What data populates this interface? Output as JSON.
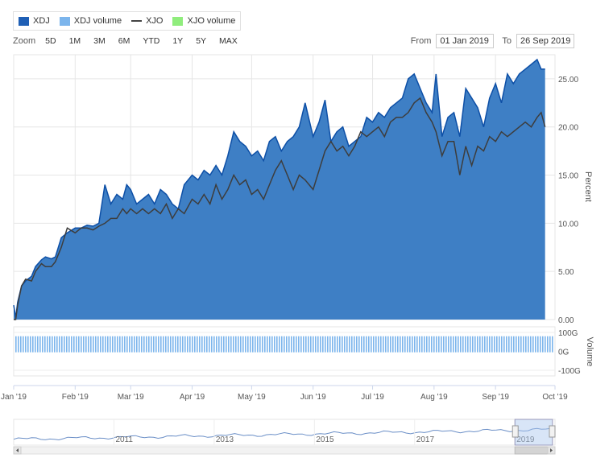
{
  "legend": [
    {
      "label": "XDJ",
      "color": "#1f5fb5",
      "kind": "area"
    },
    {
      "label": "XDJ volume",
      "color": "#7cb5ec",
      "kind": "bar"
    },
    {
      "label": "XJO",
      "color": "#444444",
      "kind": "line"
    },
    {
      "label": "XJO volume",
      "color": "#90ed7d",
      "kind": "bar"
    }
  ],
  "toolbar": {
    "zoom_label": "Zoom",
    "zoom_buttons": [
      "5D",
      "1M",
      "3M",
      "6M",
      "YTD",
      "1Y",
      "5Y",
      "MAX"
    ],
    "from_label": "From",
    "from_value": "01 Jan 2019",
    "to_label": "To",
    "to_value": "26 Sep 2019"
  },
  "chart_data": {
    "type": "area",
    "x_axis": {
      "ticks": [
        "Jan '19",
        "Feb '19",
        "Mar '19",
        "Apr '19",
        "May '19",
        "Jun '19",
        "Jul '19",
        "Aug '19",
        "Sep '19",
        "Oct '19"
      ],
      "start": "2019-01-01",
      "end": "2019-10-01"
    },
    "y_axis": {
      "label": "Percent",
      "ticks": [
        "0.00",
        "5.00",
        "10.00",
        "15.00",
        "20.00",
        "25.00"
      ],
      "range": [
        0,
        27.5
      ]
    },
    "volume_axis": {
      "label": "Volume",
      "ticks": [
        "100G",
        "0G",
        "-100G"
      ],
      "range": [
        -130,
        130
      ]
    },
    "series": [
      {
        "name": "XDJ",
        "x": [
          "2019-01-01",
          "2019-01-02",
          "2019-01-03",
          "2019-01-05",
          "2019-01-07",
          "2019-01-10",
          "2019-01-12",
          "2019-01-15",
          "2019-01-17",
          "2019-01-20",
          "2019-01-22",
          "2019-01-25",
          "2019-01-28",
          "2019-02-01",
          "2019-02-04",
          "2019-02-07",
          "2019-02-10",
          "2019-02-13",
          "2019-02-16",
          "2019-02-19",
          "2019-02-22",
          "2019-02-25",
          "2019-02-27",
          "2019-03-01",
          "2019-03-04",
          "2019-03-07",
          "2019-03-10",
          "2019-03-13",
          "2019-03-16",
          "2019-03-19",
          "2019-03-22",
          "2019-03-25",
          "2019-03-28",
          "2019-04-01",
          "2019-04-04",
          "2019-04-07",
          "2019-04-10",
          "2019-04-13",
          "2019-04-16",
          "2019-04-19",
          "2019-04-22",
          "2019-04-25",
          "2019-04-28",
          "2019-05-01",
          "2019-05-04",
          "2019-05-07",
          "2019-05-10",
          "2019-05-13",
          "2019-05-16",
          "2019-05-19",
          "2019-05-22",
          "2019-05-25",
          "2019-05-28",
          "2019-06-01",
          "2019-06-04",
          "2019-06-07",
          "2019-06-10",
          "2019-06-13",
          "2019-06-16",
          "2019-06-19",
          "2019-06-22",
          "2019-06-25",
          "2019-06-28",
          "2019-07-01",
          "2019-07-04",
          "2019-07-07",
          "2019-07-10",
          "2019-07-13",
          "2019-07-16",
          "2019-07-19",
          "2019-07-22",
          "2019-07-25",
          "2019-07-28",
          "2019-07-31",
          "2019-08-02",
          "2019-08-05",
          "2019-08-08",
          "2019-08-11",
          "2019-08-14",
          "2019-08-17",
          "2019-08-20",
          "2019-08-23",
          "2019-08-26",
          "2019-08-29",
          "2019-09-01",
          "2019-09-04",
          "2019-09-07",
          "2019-09-10",
          "2019-09-13",
          "2019-09-16",
          "2019-09-19",
          "2019-09-22",
          "2019-09-24",
          "2019-09-26"
        ],
        "values": [
          1.5,
          0.2,
          1.8,
          3.5,
          4.0,
          4.5,
          5.5,
          6.2,
          6.5,
          6.3,
          6.5,
          8.5,
          9.0,
          9.5,
          9.5,
          9.8,
          9.7,
          10.0,
          14.0,
          12.0,
          13.0,
          12.5,
          14.0,
          13.5,
          12.0,
          12.5,
          13.0,
          12.0,
          13.5,
          13.0,
          12.0,
          11.5,
          14.0,
          15.0,
          14.5,
          15.5,
          15.0,
          16.0,
          15.0,
          17.0,
          19.5,
          18.5,
          18.0,
          17.0,
          17.5,
          16.5,
          18.5,
          19.0,
          17.5,
          18.5,
          19.0,
          20.0,
          22.5,
          19.0,
          20.5,
          22.8,
          18.5,
          19.5,
          20.0,
          18.0,
          18.5,
          19.0,
          21.0,
          20.5,
          21.5,
          21.0,
          22.0,
          22.5,
          23.0,
          25.0,
          25.5,
          24.0,
          22.5,
          21.5,
          25.5,
          19.0,
          21.0,
          21.5,
          19.0,
          24.0,
          23.0,
          22.0,
          20.0,
          23.0,
          24.5,
          22.5,
          25.5,
          24.5,
          25.5,
          26.0,
          26.5,
          27.0,
          26.0,
          26.0
        ]
      },
      {
        "name": "XJO",
        "x": [
          "2019-01-01",
          "2019-01-02",
          "2019-01-03",
          "2019-01-05",
          "2019-01-07",
          "2019-01-10",
          "2019-01-12",
          "2019-01-15",
          "2019-01-17",
          "2019-01-20",
          "2019-01-22",
          "2019-01-25",
          "2019-01-28",
          "2019-02-01",
          "2019-02-04",
          "2019-02-07",
          "2019-02-10",
          "2019-02-13",
          "2019-02-16",
          "2019-02-19",
          "2019-02-22",
          "2019-02-25",
          "2019-02-27",
          "2019-03-01",
          "2019-03-04",
          "2019-03-07",
          "2019-03-10",
          "2019-03-13",
          "2019-03-16",
          "2019-03-19",
          "2019-03-22",
          "2019-03-25",
          "2019-03-28",
          "2019-04-01",
          "2019-04-04",
          "2019-04-07",
          "2019-04-10",
          "2019-04-13",
          "2019-04-16",
          "2019-04-19",
          "2019-04-22",
          "2019-04-25",
          "2019-04-28",
          "2019-05-01",
          "2019-05-04",
          "2019-05-07",
          "2019-05-10",
          "2019-05-13",
          "2019-05-16",
          "2019-05-19",
          "2019-05-22",
          "2019-05-25",
          "2019-05-28",
          "2019-06-01",
          "2019-06-04",
          "2019-06-07",
          "2019-06-10",
          "2019-06-13",
          "2019-06-16",
          "2019-06-19",
          "2019-06-22",
          "2019-06-25",
          "2019-06-28",
          "2019-07-01",
          "2019-07-04",
          "2019-07-07",
          "2019-07-10",
          "2019-07-13",
          "2019-07-16",
          "2019-07-19",
          "2019-07-22",
          "2019-07-25",
          "2019-07-28",
          "2019-07-31",
          "2019-08-02",
          "2019-08-05",
          "2019-08-08",
          "2019-08-11",
          "2019-08-14",
          "2019-08-17",
          "2019-08-20",
          "2019-08-23",
          "2019-08-26",
          "2019-08-29",
          "2019-09-01",
          "2019-09-04",
          "2019-09-07",
          "2019-09-10",
          "2019-09-13",
          "2019-09-16",
          "2019-09-19",
          "2019-09-22",
          "2019-09-24",
          "2019-09-26"
        ],
        "values": [
          0.0,
          0.0,
          1.5,
          3.5,
          4.2,
          4.0,
          5.0,
          5.8,
          5.5,
          5.5,
          6.0,
          7.5,
          9.5,
          9.0,
          9.5,
          9.5,
          9.3,
          9.7,
          10.0,
          10.5,
          10.5,
          11.5,
          11.0,
          11.5,
          11.0,
          11.5,
          11.0,
          11.5,
          11.0,
          12.0,
          10.5,
          11.5,
          11.0,
          12.5,
          12.0,
          13.0,
          12.0,
          14.0,
          12.5,
          13.5,
          15.0,
          14.0,
          14.5,
          13.0,
          13.5,
          12.5,
          14.0,
          15.5,
          16.5,
          15.0,
          13.5,
          15.0,
          14.5,
          13.5,
          15.5,
          17.5,
          18.5,
          17.5,
          18.0,
          17.0,
          18.0,
          19.5,
          19.0,
          19.5,
          20.0,
          19.0,
          20.5,
          21.0,
          21.0,
          21.5,
          22.5,
          23.0,
          21.5,
          20.5,
          19.5,
          17.0,
          18.5,
          18.5,
          15.0,
          18.0,
          16.0,
          18.0,
          17.5,
          19.0,
          18.5,
          19.5,
          19.0,
          19.5,
          20.0,
          20.5,
          20.0,
          21.0,
          21.5,
          20.0
        ]
      }
    ],
    "volume": {
      "name": "XDJ volume",
      "approx_level": 80
    },
    "navigator": {
      "ticks": [
        "2011",
        "2013",
        "2015",
        "2017",
        "2019"
      ],
      "selection_start_year": 2019.0,
      "selection_end_year": 2019.75
    }
  }
}
